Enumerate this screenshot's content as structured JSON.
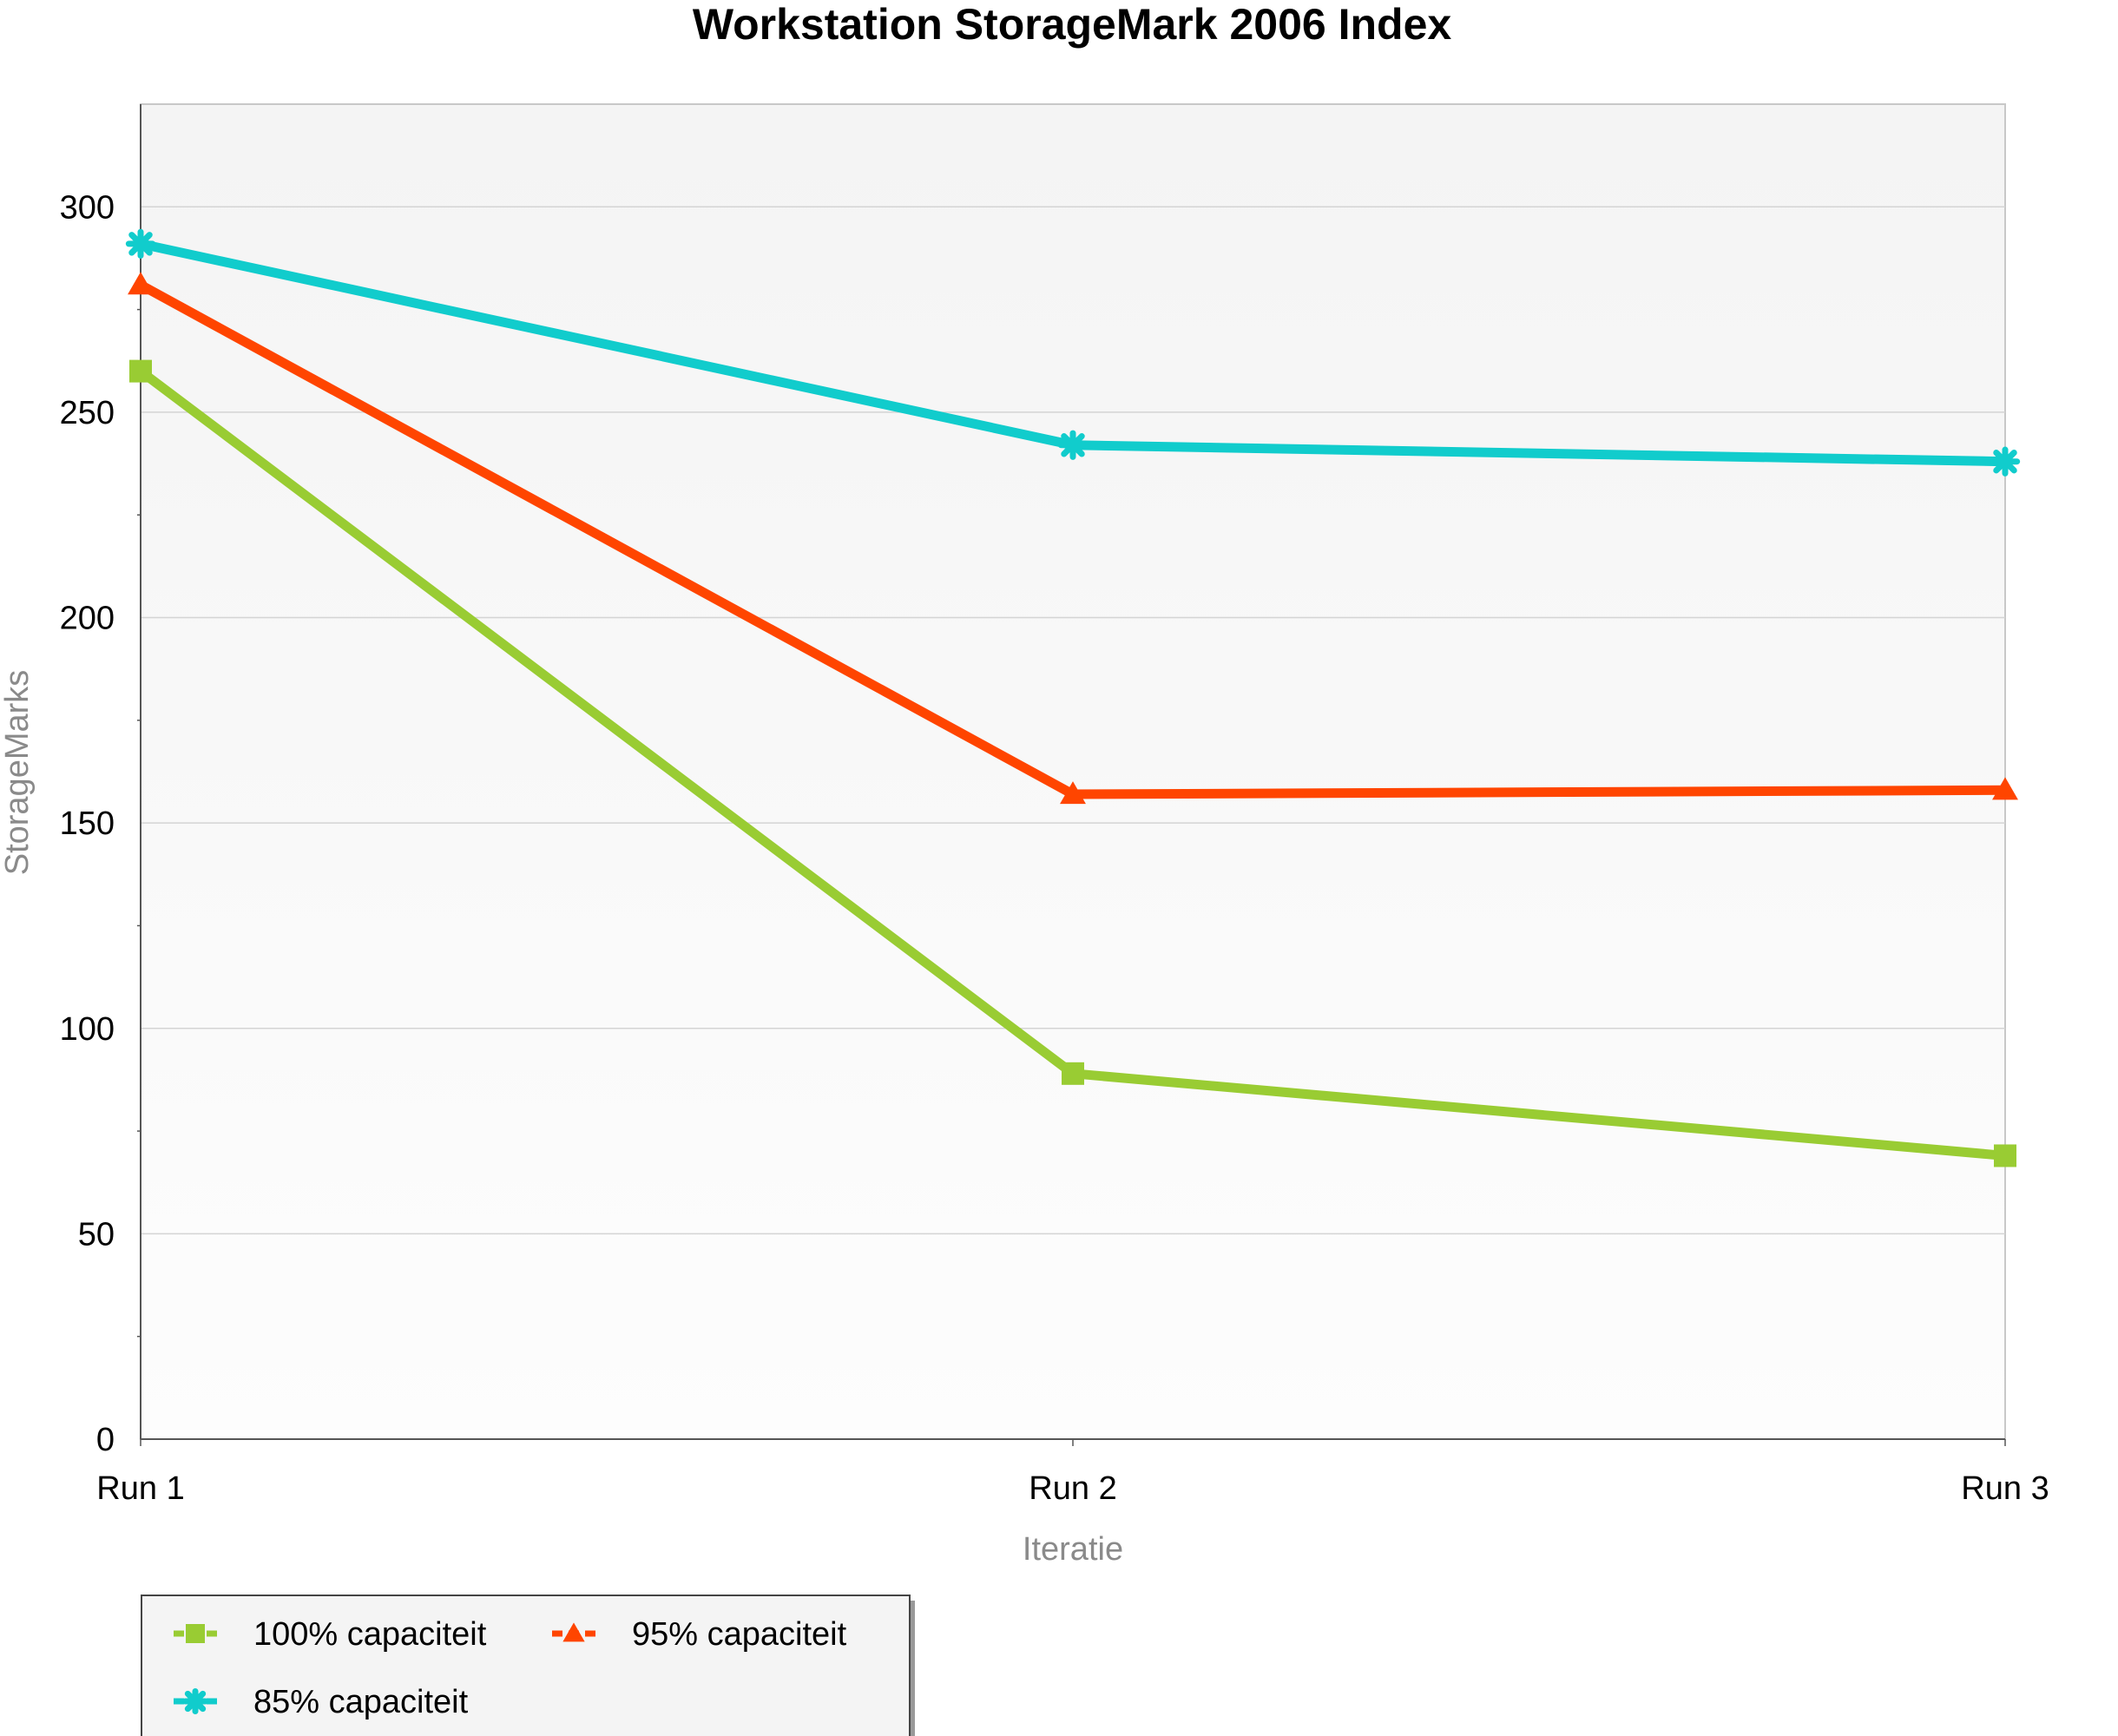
{
  "chart_data": {
    "type": "line",
    "title": "Workstation StorageMark 2006 Index",
    "xlabel": "Iteratie",
    "ylabel": "StorageMarks",
    "categories": [
      "Run 1",
      "Run 2",
      "Run 3"
    ],
    "ylim": [
      0,
      325
    ],
    "yticks": [
      0,
      50,
      100,
      150,
      200,
      250,
      300
    ],
    "grid": true,
    "legend_position": "bottom-left",
    "series": [
      {
        "name": "100% capaciteit",
        "color": "#99cc33",
        "marker": "square",
        "values": [
          260,
          89,
          69
        ]
      },
      {
        "name": "95% capaciteit",
        "color": "#ff4500",
        "marker": "triangle",
        "values": [
          281,
          157,
          158
        ]
      },
      {
        "name": "85% capaciteit",
        "color": "#11cccc",
        "marker": "star",
        "values": [
          291,
          242,
          238
        ]
      }
    ]
  }
}
